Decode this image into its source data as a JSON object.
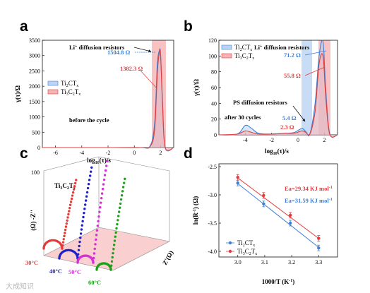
{
  "colors": {
    "blue": "#3f7fd6",
    "red": "#e33b3b",
    "blue_fill": "#bcd3f2",
    "red_fill": "#f6b3b3",
    "purple": "#7a14c8",
    "navy": "#2020c8",
    "magenta": "#d52fd6",
    "green": "#1aa01a"
  },
  "watermark": "大成知识",
  "chart_data": [
    {
      "panel": "a",
      "type": "line",
      "xlabel": "log10(τ)/s",
      "ylabel": "γ(τ)/Ω",
      "xlim": [
        -7,
        3
      ],
      "ylim": [
        0,
        3500
      ],
      "xticks": [
        -6,
        -4,
        -2,
        0,
        2
      ],
      "yticks": [
        0,
        500,
        1000,
        1500,
        2000,
        2500,
        3000,
        3500
      ],
      "series": [
        {
          "name": "Ti2CTx",
          "color": "blue",
          "x": [
            -7,
            -3,
            -1.5,
            0.5,
            1.2,
            1.55,
            1.75,
            1.9,
            2.0,
            2.15,
            2.35,
            3
          ],
          "y": [
            0,
            0,
            0,
            0,
            50,
            800,
            2700,
            3150,
            3050,
            1500,
            0,
            0
          ]
        },
        {
          "name": "Ti3C2Tx",
          "color": "red",
          "x": [
            -7,
            -3,
            -1.5,
            0.5,
            1.2,
            1.55,
            1.75,
            1.9,
            2.0,
            2.15,
            2.35,
            3
          ],
          "y": [
            0,
            0,
            0,
            0,
            30,
            600,
            2400,
            3080,
            3000,
            1400,
            0,
            0
          ]
        }
      ],
      "annotations": {
        "li_label": "Li+ diffusion resistors",
        "blue_value": "1504.8 Ω",
        "red_value": "1382.3 Ω",
        "condition": "before the cycle"
      },
      "legend": {
        "t1": "Ti2CTx",
        "t2": "Ti3C2Tx"
      }
    },
    {
      "panel": "b",
      "type": "line",
      "xlabel": "log10(τ)/s",
      "ylabel": "γ(τ)/Ω",
      "xlim": [
        -6,
        3
      ],
      "ylim": [
        0,
        120
      ],
      "xticks": [
        -4,
        -2,
        0,
        2
      ],
      "yticks": [
        0,
        20,
        40,
        60,
        80,
        100,
        120
      ],
      "series": [
        {
          "name": "Ti2CTx",
          "color": "blue",
          "x": [
            -6,
            -4.6,
            -4.0,
            -3.5,
            -3.0,
            -2.0,
            -1.0,
            -0.3,
            0.3,
            0.6,
            0.9,
            1.3,
            1.6,
            1.9,
            2.1,
            2.4,
            3
          ],
          "y": [
            0,
            1,
            12,
            8,
            2,
            1,
            2,
            3,
            8,
            4,
            1,
            40,
            100,
            118,
            60,
            2,
            0
          ]
        },
        {
          "name": "Ti3C2Tx",
          "color": "red",
          "x": [
            -6,
            -4.6,
            -4.0,
            -3.5,
            -3.0,
            -2.0,
            -1.0,
            -0.3,
            0.3,
            0.6,
            0.9,
            1.3,
            1.6,
            1.9,
            2.1,
            2.4,
            3
          ],
          "y": [
            0,
            1,
            5,
            3,
            1,
            1,
            2,
            2,
            5,
            3,
            1,
            30,
            90,
            100,
            50,
            1,
            0
          ]
        }
      ],
      "annotations": {
        "li_label": "Li+ diffusion resistors",
        "blue_value": "71.2 Ω",
        "red_value": "55.8 Ω",
        "ps_label": "PS diffusion resistors",
        "ps_blue": "5.4 Ω",
        "ps_red": "2.3 Ω",
        "condition": "after 30 cycles"
      },
      "legend": {
        "t1": "Ti2CTx",
        "t2": "Ti3C2Tx"
      }
    },
    {
      "panel": "c",
      "type": "scatter",
      "zlabel": "-Z''",
      "zunit": "(Ω)",
      "zref": "100",
      "axis_label": "Z'(Ω)",
      "material": "Ti3C2Tx",
      "series": [
        {
          "name": "30°C",
          "color": "red"
        },
        {
          "name": "40°C",
          "color": "navy"
        },
        {
          "name": "50°C",
          "color": "magenta"
        },
        {
          "name": "60°C",
          "color": "green"
        }
      ]
    },
    {
      "panel": "d",
      "type": "scatter",
      "xlabel": "1000/T (K-1)",
      "ylabel": "ln(R-1) (Ω)",
      "xlim": [
        2.93,
        3.37
      ],
      "ylim": [
        -4.1,
        -2.45
      ],
      "xticks": [
        3.0,
        3.1,
        3.2,
        3.3
      ],
      "yticks": [
        -4.0,
        -3.5,
        -3.0,
        -2.5
      ],
      "series": [
        {
          "name": "Ti2CTx",
          "color": "blue",
          "x": [
            3.0,
            3.096,
            3.195,
            3.3
          ],
          "y": [
            -2.79,
            -3.16,
            -3.5,
            -3.94
          ],
          "err": [
            0.05,
            0.05,
            0.05,
            0.05
          ],
          "fit": [
            [
              3.0,
              -2.8
            ],
            [
              3.3,
              -3.93
            ]
          ],
          "ea": "Ea=31.59 KJ mol-1"
        },
        {
          "name": "Ti3C2Tx",
          "color": "red",
          "x": [
            3.0,
            3.096,
            3.195,
            3.3
          ],
          "y": [
            -2.69,
            -3.01,
            -3.36,
            -3.77
          ],
          "err": [
            0.05,
            0.05,
            0.05,
            0.05
          ],
          "fit": [
            [
              3.0,
              -2.7
            ],
            [
              3.3,
              -3.77
            ]
          ],
          "ea": "Ea=29.34 KJ mol-1"
        }
      ]
    }
  ]
}
